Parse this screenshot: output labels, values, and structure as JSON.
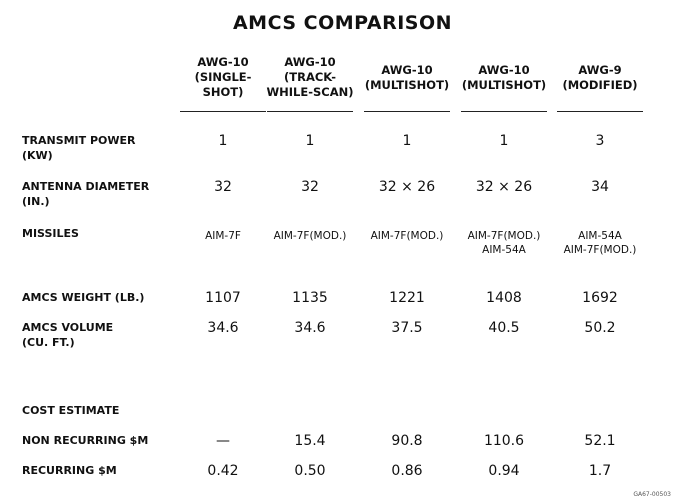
{
  "title": "AMCS COMPARISON",
  "columns": [
    {
      "lines": [
        "AWG-10",
        "(SINGLE-",
        "SHOT)"
      ]
    },
    {
      "lines": [
        "AWG-10",
        "(TRACK-",
        "WHILE-SCAN)"
      ]
    },
    {
      "lines": [
        "AWG-10",
        "(MULTISHOT)"
      ]
    },
    {
      "lines": [
        "AWG-10",
        "(MULTISHOT)"
      ]
    },
    {
      "lines": [
        "AWG-9",
        "(MODIFIED)"
      ]
    }
  ],
  "rows": [
    {
      "label": [
        "TRANSMIT POWER",
        "(KW)"
      ],
      "values": [
        "1",
        "1",
        "1",
        "1",
        "3"
      ]
    },
    {
      "label": [
        "ANTENNA DIAMETER",
        "(IN.)"
      ],
      "values": [
        "32",
        "32",
        "32 × 26",
        "32 × 26",
        "34"
      ]
    },
    {
      "label": [
        "MISSILES"
      ],
      "values": [
        [
          "AIM-7F"
        ],
        [
          "AIM-7F(MOD.)"
        ],
        [
          "AIM-7F(MOD.)"
        ],
        [
          "AIM-7F(MOD.)",
          "AIM-54A"
        ],
        [
          "AIM-54A",
          "AIM-7F(MOD.)"
        ]
      ]
    },
    {
      "label": [
        "AMCS WEIGHT (LB.)"
      ],
      "values": [
        "1107",
        "1135",
        "1221",
        "1408",
        "1692"
      ]
    },
    {
      "label": [
        "AMCS VOLUME",
        "(CU. FT.)"
      ],
      "values": [
        "34.6",
        "34.6",
        "37.5",
        "40.5",
        "50.2"
      ]
    },
    {
      "label": [
        "COST ESTIMATE"
      ],
      "values": []
    },
    {
      "label": [
        "NON RECURRING $M"
      ],
      "values": [
        "—",
        "15.4",
        "90.8",
        "110.6",
        "52.1"
      ]
    },
    {
      "label": [
        "RECURRING  $M"
      ],
      "values": [
        "0.42",
        "0.50",
        "0.86",
        "0.94",
        "1.7"
      ]
    }
  ],
  "footer": "GA67-00503"
}
